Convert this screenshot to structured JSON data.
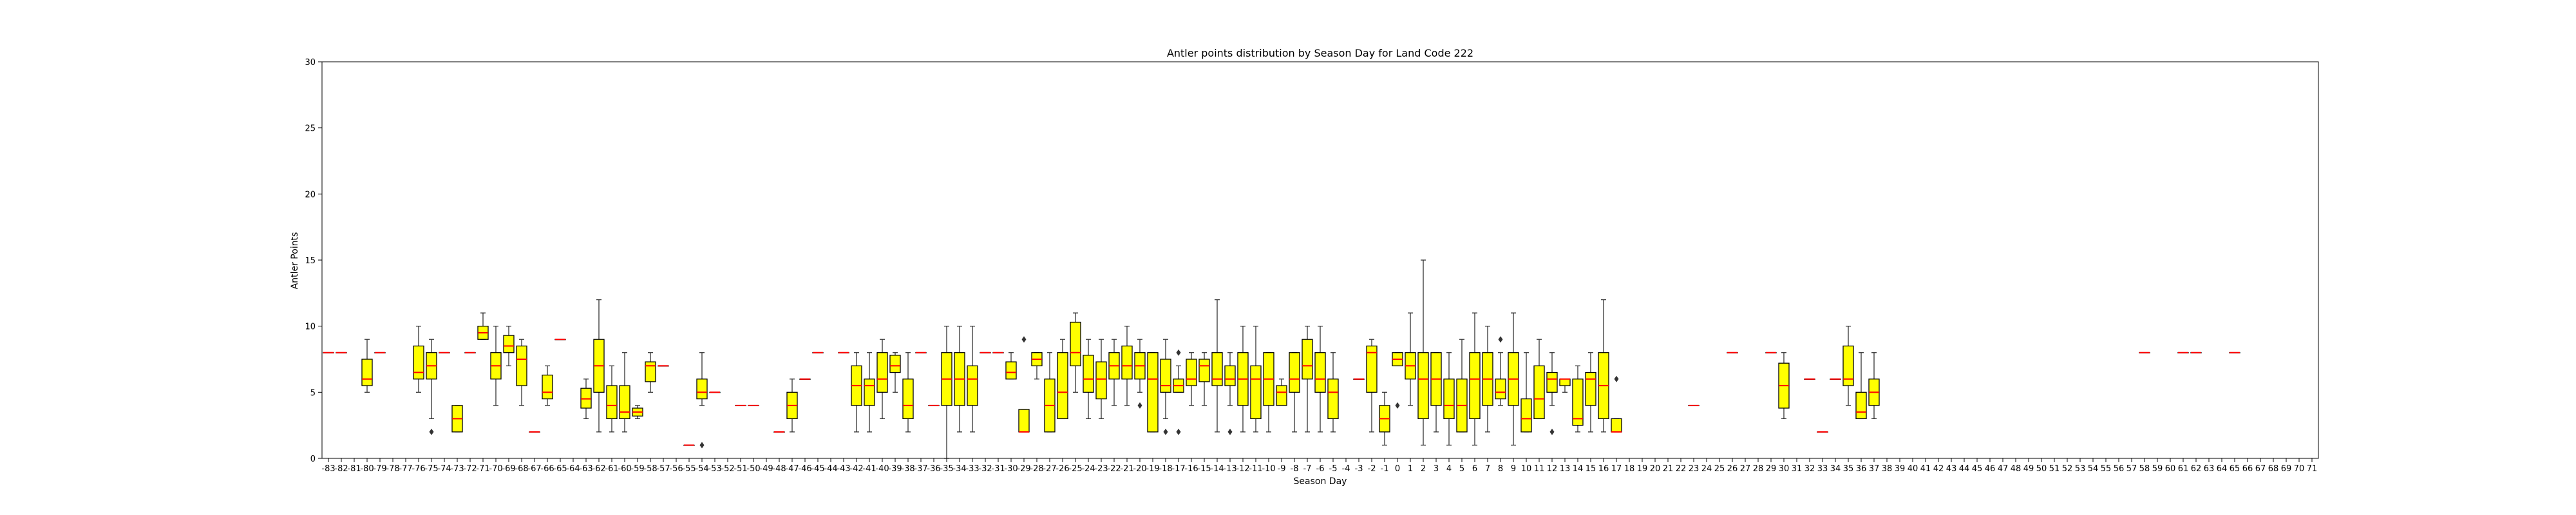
{
  "chart_data": {
    "type": "box",
    "title": "Antler points distribution by Season Day for Land Code 222",
    "xlabel": "Season Day",
    "ylabel": "Antler Points",
    "ylim": [
      0,
      30
    ],
    "yticks": [
      0,
      5,
      10,
      15,
      20,
      25,
      30
    ],
    "grid": false,
    "colors": {
      "box_fill": "#ffff00",
      "median": "#ff0000",
      "edge": "#000000",
      "whisker": "#333333"
    },
    "categories": [
      -83,
      -82,
      -81,
      -80,
      -79,
      -78,
      -77,
      -76,
      -75,
      -74,
      -73,
      -72,
      -71,
      -70,
      -69,
      -68,
      -67,
      -66,
      -65,
      -64,
      -63,
      -62,
      -61,
      -60,
      -59,
      -58,
      -57,
      -56,
      -55,
      -54,
      -53,
      -52,
      -51,
      -50,
      -49,
      -48,
      -47,
      -46,
      -45,
      -44,
      -43,
      -42,
      -41,
      -40,
      -39,
      -38,
      -37,
      -36,
      -35,
      -34,
      -33,
      -32,
      -31,
      -30,
      -29,
      -28,
      -27,
      -26,
      -25,
      -24,
      -23,
      -22,
      -21,
      -20,
      -19,
      -18,
      -17,
      -16,
      -15,
      -14,
      -13,
      -12,
      -11,
      -10,
      -9,
      -8,
      -7,
      -6,
      -5,
      -4,
      -3,
      -2,
      -1,
      0,
      1,
      2,
      3,
      4,
      5,
      6,
      7,
      8,
      9,
      10,
      11,
      12,
      13,
      14,
      15,
      16,
      17,
      18,
      19,
      20,
      21,
      22,
      23,
      24,
      25,
      26,
      27,
      28,
      29,
      30,
      31,
      32,
      33,
      34,
      35,
      36,
      37,
      38,
      39,
      40,
      41,
      42,
      43,
      44,
      45,
      46,
      47,
      48,
      49,
      50,
      51,
      52,
      53,
      54,
      55,
      56,
      57,
      58,
      59,
      60,
      61,
      62,
      63,
      64,
      65,
      66,
      67,
      68,
      69,
      70,
      71
    ],
    "boxes": [
      {
        "x": -83,
        "min": 8,
        "q1": 8,
        "median": 8,
        "q3": 8,
        "max": 8
      },
      {
        "x": -82,
        "min": 8,
        "q1": 8,
        "median": 8,
        "q3": 8,
        "max": 8
      },
      {
        "x": -80,
        "min": 5,
        "q1": 5.5,
        "median": 6,
        "q3": 7.5,
        "max": 9
      },
      {
        "x": -79,
        "min": 8,
        "q1": 8,
        "median": 8,
        "q3": 8,
        "max": 8
      },
      {
        "x": -76,
        "min": 5,
        "q1": 6,
        "median": 6.5,
        "q3": 8.5,
        "max": 10
      },
      {
        "x": -75,
        "min": 3,
        "q1": 6,
        "median": 7,
        "q3": 8,
        "max": 9,
        "outliers": [
          2
        ]
      },
      {
        "x": -74,
        "min": 8,
        "q1": 8,
        "median": 8,
        "q3": 8,
        "max": 8
      },
      {
        "x": -73,
        "min": 2,
        "q1": 2,
        "median": 3,
        "q3": 4,
        "max": 4
      },
      {
        "x": -72,
        "min": 8,
        "q1": 8,
        "median": 8,
        "q3": 8,
        "max": 8
      },
      {
        "x": -71,
        "min": 9,
        "q1": 9,
        "median": 9.5,
        "q3": 10,
        "max": 11
      },
      {
        "x": -70,
        "min": 4,
        "q1": 6,
        "median": 7,
        "q3": 8,
        "max": 10
      },
      {
        "x": -69,
        "min": 7,
        "q1": 8,
        "median": 8.5,
        "q3": 9.3,
        "max": 10
      },
      {
        "x": -68,
        "min": 4,
        "q1": 5.5,
        "median": 7.5,
        "q3": 8.5,
        "max": 9
      },
      {
        "x": -67,
        "min": 2,
        "q1": 2,
        "median": 2,
        "q3": 2,
        "max": 2
      },
      {
        "x": -66,
        "min": 4,
        "q1": 4.5,
        "median": 5,
        "q3": 6.3,
        "max": 7
      },
      {
        "x": -65,
        "min": 9,
        "q1": 9,
        "median": 9,
        "q3": 9,
        "max": 9
      },
      {
        "x": -63,
        "min": 3,
        "q1": 3.8,
        "median": 4.5,
        "q3": 5.3,
        "max": 6
      },
      {
        "x": -62,
        "min": 2,
        "q1": 5,
        "median": 7,
        "q3": 9,
        "max": 12
      },
      {
        "x": -61,
        "min": 2,
        "q1": 3,
        "median": 4,
        "q3": 5.5,
        "max": 7
      },
      {
        "x": -60,
        "min": 2,
        "q1": 3,
        "median": 3.5,
        "q3": 5.5,
        "max": 8
      },
      {
        "x": -59,
        "min": 3,
        "q1": 3.2,
        "median": 3.5,
        "q3": 3.8,
        "max": 4
      },
      {
        "x": -58,
        "min": 5,
        "q1": 5.8,
        "median": 7,
        "q3": 7.3,
        "max": 8
      },
      {
        "x": -57,
        "min": 7,
        "q1": 7,
        "median": 7,
        "q3": 7,
        "max": 7
      },
      {
        "x": -55,
        "min": 1,
        "q1": 1,
        "median": 1,
        "q3": 1,
        "max": 1
      },
      {
        "x": -54,
        "min": 4,
        "q1": 4.5,
        "median": 5,
        "q3": 6,
        "max": 8,
        "outliers": [
          1
        ]
      },
      {
        "x": -53,
        "min": 5,
        "q1": 5,
        "median": 5,
        "q3": 5,
        "max": 5
      },
      {
        "x": -51,
        "min": 4,
        "q1": 4,
        "median": 4,
        "q3": 4,
        "max": 4
      },
      {
        "x": -50,
        "min": 4,
        "q1": 4,
        "median": 4,
        "q3": 4,
        "max": 4
      },
      {
        "x": -48,
        "min": 2,
        "q1": 2,
        "median": 2,
        "q3": 2,
        "max": 2
      },
      {
        "x": -47,
        "min": 2,
        "q1": 3,
        "median": 4,
        "q3": 5,
        "max": 6
      },
      {
        "x": -46,
        "min": 6,
        "q1": 6,
        "median": 6,
        "q3": 6,
        "max": 6
      },
      {
        "x": -45,
        "min": 8,
        "q1": 8,
        "median": 8,
        "q3": 8,
        "max": 8
      },
      {
        "x": -43,
        "min": 8,
        "q1": 8,
        "median": 8,
        "q3": 8,
        "max": 8
      },
      {
        "x": -42,
        "min": 2,
        "q1": 4,
        "median": 5.5,
        "q3": 7,
        "max": 8
      },
      {
        "x": -41,
        "min": 2,
        "q1": 4,
        "median": 5.5,
        "q3": 6,
        "max": 8
      },
      {
        "x": -40,
        "min": 3,
        "q1": 5,
        "median": 6,
        "q3": 8,
        "max": 9
      },
      {
        "x": -39,
        "min": 5,
        "q1": 6.5,
        "median": 7,
        "q3": 7.8,
        "max": 8
      },
      {
        "x": -38,
        "min": 2,
        "q1": 3,
        "median": 4,
        "q3": 6,
        "max": 8
      },
      {
        "x": -37,
        "min": 8,
        "q1": 8,
        "median": 8,
        "q3": 8,
        "max": 8
      },
      {
        "x": -36,
        "min": 4,
        "q1": 4,
        "median": 4,
        "q3": 4,
        "max": 4
      },
      {
        "x": -35,
        "min": 0,
        "q1": 4,
        "median": 6,
        "q3": 8,
        "max": 10
      },
      {
        "x": -34,
        "min": 2,
        "q1": 4,
        "median": 6,
        "q3": 8,
        "max": 10
      },
      {
        "x": -33,
        "min": 2,
        "q1": 4,
        "median": 6,
        "q3": 7,
        "max": 10
      },
      {
        "x": -32,
        "min": 8,
        "q1": 8,
        "median": 8,
        "q3": 8,
        "max": 8
      },
      {
        "x": -31,
        "min": 8,
        "q1": 8,
        "median": 8,
        "q3": 8,
        "max": 8
      },
      {
        "x": -30,
        "min": 6,
        "q1": 6,
        "median": 6.5,
        "q3": 7.3,
        "max": 8
      },
      {
        "x": -29,
        "min": 2,
        "q1": 2,
        "median": 2,
        "q3": 3.7,
        "max": 3.7,
        "outliers": [
          9
        ]
      },
      {
        "x": -28,
        "min": 6,
        "q1": 7,
        "median": 7.5,
        "q3": 8,
        "max": 8
      },
      {
        "x": -27,
        "min": 2,
        "q1": 2,
        "median": 4,
        "q3": 6,
        "max": 8
      },
      {
        "x": -26,
        "min": 3,
        "q1": 3,
        "median": 5,
        "q3": 8,
        "max": 9
      },
      {
        "x": -25,
        "min": 5,
        "q1": 7,
        "median": 8,
        "q3": 10.3,
        "max": 11
      },
      {
        "x": -24,
        "min": 3,
        "q1": 5,
        "median": 6,
        "q3": 7.8,
        "max": 9
      },
      {
        "x": -23,
        "min": 3,
        "q1": 4.5,
        "median": 6,
        "q3": 7.3,
        "max": 9
      },
      {
        "x": -22,
        "min": 4,
        "q1": 6,
        "median": 7,
        "q3": 8,
        "max": 9
      },
      {
        "x": -21,
        "min": 4,
        "q1": 6,
        "median": 7,
        "q3": 8.5,
        "max": 10
      },
      {
        "x": -20,
        "min": 5,
        "q1": 6,
        "median": 7,
        "q3": 8,
        "max": 9,
        "outliers": [
          4
        ]
      },
      {
        "x": -19,
        "min": 2,
        "q1": 2,
        "median": 6,
        "q3": 8,
        "max": 8
      },
      {
        "x": -18,
        "min": 3,
        "q1": 5,
        "median": 5.5,
        "q3": 7.5,
        "max": 9,
        "outliers": [
          2
        ]
      },
      {
        "x": -17,
        "min": 5,
        "q1": 5,
        "median": 5.5,
        "q3": 6,
        "max": 7,
        "outliers": [
          2,
          8
        ]
      },
      {
        "x": -16,
        "min": 4,
        "q1": 5.5,
        "median": 6,
        "q3": 7.5,
        "max": 8
      },
      {
        "x": -15,
        "min": 4,
        "q1": 5.8,
        "median": 7,
        "q3": 7.5,
        "max": 8
      },
      {
        "x": -14,
        "min": 2,
        "q1": 5.5,
        "median": 6,
        "q3": 8,
        "max": 12
      },
      {
        "x": -13,
        "min": 4,
        "q1": 5.5,
        "median": 6,
        "q3": 7,
        "max": 8,
        "outliers": [
          2
        ]
      },
      {
        "x": -12,
        "min": 2,
        "q1": 4,
        "median": 6,
        "q3": 8,
        "max": 10
      },
      {
        "x": -11,
        "min": 2,
        "q1": 3,
        "median": 6,
        "q3": 7,
        "max": 10
      },
      {
        "x": -10,
        "min": 2,
        "q1": 4,
        "median": 6,
        "q3": 8,
        "max": 8
      },
      {
        "x": -9,
        "min": 4,
        "q1": 4,
        "median": 5,
        "q3": 5.5,
        "max": 6
      },
      {
        "x": -8,
        "min": 2,
        "q1": 5,
        "median": 6,
        "q3": 8,
        "max": 8
      },
      {
        "x": -7,
        "min": 2,
        "q1": 6,
        "median": 7,
        "q3": 9,
        "max": 10
      },
      {
        "x": -6,
        "min": 2,
        "q1": 5,
        "median": 6,
        "q3": 8,
        "max": 10
      },
      {
        "x": -5,
        "min": 2,
        "q1": 3,
        "median": 5,
        "q3": 6,
        "max": 8
      },
      {
        "x": -3,
        "min": 6,
        "q1": 6,
        "median": 6,
        "q3": 6,
        "max": 6
      },
      {
        "x": -2,
        "min": 2,
        "q1": 5,
        "median": 8,
        "q3": 8.5,
        "max": 9
      },
      {
        "x": -1,
        "min": 1,
        "q1": 2,
        "median": 3,
        "q3": 4,
        "max": 5
      },
      {
        "x": 0,
        "min": 7,
        "q1": 7,
        "median": 7.5,
        "q3": 8,
        "max": 8,
        "outliers": [
          4
        ]
      },
      {
        "x": 1,
        "min": 4,
        "q1": 6,
        "median": 7,
        "q3": 8,
        "max": 11
      },
      {
        "x": 2,
        "min": 1,
        "q1": 3,
        "median": 6,
        "q3": 8,
        "max": 15
      },
      {
        "x": 3,
        "min": 2,
        "q1": 4,
        "median": 6,
        "q3": 8,
        "max": 8
      },
      {
        "x": 4,
        "min": 1,
        "q1": 3,
        "median": 4,
        "q3": 6,
        "max": 8
      },
      {
        "x": 5,
        "min": 2,
        "q1": 2,
        "median": 4,
        "q3": 6,
        "max": 9
      },
      {
        "x": 6,
        "min": 1,
        "q1": 3,
        "median": 6,
        "q3": 8,
        "max": 11
      },
      {
        "x": 7,
        "min": 2,
        "q1": 4,
        "median": 6,
        "q3": 8,
        "max": 10
      },
      {
        "x": 8,
        "min": 4,
        "q1": 4.5,
        "median": 5,
        "q3": 6,
        "max": 8,
        "outliers": [
          9
        ]
      },
      {
        "x": 9,
        "min": 1,
        "q1": 4,
        "median": 6,
        "q3": 8,
        "max": 11
      },
      {
        "x": 10,
        "min": 2,
        "q1": 2,
        "median": 3,
        "q3": 4.5,
        "max": 8
      },
      {
        "x": 11,
        "min": 3,
        "q1": 3,
        "median": 4.5,
        "q3": 7,
        "max": 9
      },
      {
        "x": 12,
        "min": 4,
        "q1": 5,
        "median": 6,
        "q3": 6.5,
        "max": 8,
        "outliers": [
          2
        ]
      },
      {
        "x": 13,
        "min": 5,
        "q1": 5.5,
        "median": 6,
        "q3": 6,
        "max": 6
      },
      {
        "x": 14,
        "min": 2,
        "q1": 2.5,
        "median": 3,
        "q3": 6,
        "max": 7
      },
      {
        "x": 15,
        "min": 2,
        "q1": 4,
        "median": 6,
        "q3": 6.5,
        "max": 8
      },
      {
        "x": 16,
        "min": 2,
        "q1": 3,
        "median": 5.5,
        "q3": 8,
        "max": 12
      },
      {
        "x": 17,
        "min": 2,
        "q1": 2,
        "median": 2,
        "q3": 3,
        "max": 3,
        "outliers": [
          6
        ]
      },
      {
        "x": 23,
        "min": 4,
        "q1": 4,
        "median": 4,
        "q3": 4,
        "max": 4
      },
      {
        "x": 26,
        "min": 8,
        "q1": 8,
        "median": 8,
        "q3": 8,
        "max": 8
      },
      {
        "x": 29,
        "min": 8,
        "q1": 8,
        "median": 8,
        "q3": 8,
        "max": 8
      },
      {
        "x": 30,
        "min": 3,
        "q1": 3.8,
        "median": 5.5,
        "q3": 7.2,
        "max": 8
      },
      {
        "x": 32,
        "min": 6,
        "q1": 6,
        "median": 6,
        "q3": 6,
        "max": 6
      },
      {
        "x": 33,
        "min": 2,
        "q1": 2,
        "median": 2,
        "q3": 2,
        "max": 2
      },
      {
        "x": 34,
        "min": 6,
        "q1": 6,
        "median": 6,
        "q3": 6,
        "max": 6
      },
      {
        "x": 35,
        "min": 4,
        "q1": 5.5,
        "median": 6,
        "q3": 8.5,
        "max": 10
      },
      {
        "x": 36,
        "min": 3,
        "q1": 3,
        "median": 3.5,
        "q3": 5,
        "max": 8
      },
      {
        "x": 37,
        "min": 3,
        "q1": 4,
        "median": 5,
        "q3": 6,
        "max": 8
      },
      {
        "x": 58,
        "min": 8,
        "q1": 8,
        "median": 8,
        "q3": 8,
        "max": 8
      },
      {
        "x": 61,
        "min": 8,
        "q1": 8,
        "median": 8,
        "q3": 8,
        "max": 8
      },
      {
        "x": 62,
        "min": 8,
        "q1": 8,
        "median": 8,
        "q3": 8,
        "max": 8
      },
      {
        "x": 65,
        "min": 8,
        "q1": 8,
        "median": 8,
        "q3": 8,
        "max": 8
      }
    ]
  }
}
